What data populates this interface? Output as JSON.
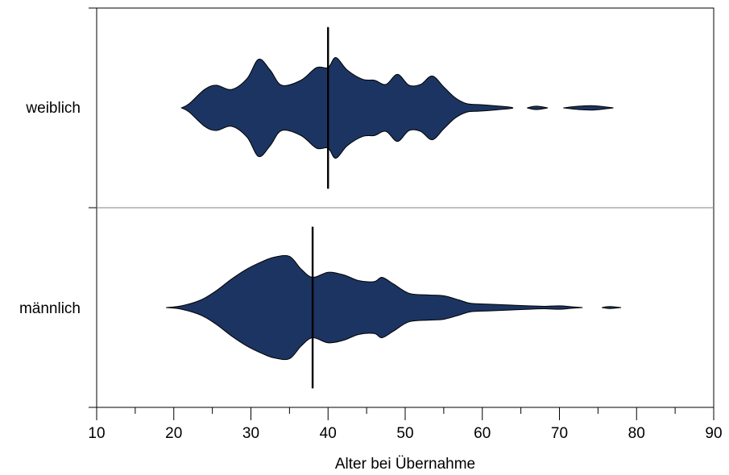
{
  "chart_data": {
    "type": "violin",
    "title": "",
    "xlabel": "Alter bei Übernahme",
    "ylabel": "",
    "xlim": [
      10,
      90
    ],
    "x_ticks": [
      "10",
      "20",
      "30",
      "40",
      "50",
      "60",
      "70",
      "80",
      "90"
    ],
    "x_minor_ticks": [
      15,
      25,
      35,
      45,
      55,
      65,
      75,
      85
    ],
    "grid": false,
    "legend": "none",
    "fill_color": "#1c3461",
    "outline_color": "#000000",
    "categories": [
      "weiblich",
      "männlich"
    ],
    "series": [
      {
        "name": "weiblich",
        "median": 40,
        "density": [
          [
            21.0,
            0
          ],
          [
            22.0,
            0.05
          ],
          [
            24.0,
            0.22
          ],
          [
            25.5,
            0.27
          ],
          [
            27.5,
            0.22
          ],
          [
            29.5,
            0.35
          ],
          [
            31.0,
            0.58
          ],
          [
            32.5,
            0.45
          ],
          [
            34.0,
            0.27
          ],
          [
            36.5,
            0.33
          ],
          [
            38.5,
            0.48
          ],
          [
            40.0,
            0.48
          ],
          [
            41.0,
            0.6
          ],
          [
            42.5,
            0.45
          ],
          [
            44.5,
            0.34
          ],
          [
            46.0,
            0.33
          ],
          [
            47.5,
            0.28
          ],
          [
            49.0,
            0.4
          ],
          [
            50.5,
            0.27
          ],
          [
            52.0,
            0.28
          ],
          [
            53.5,
            0.38
          ],
          [
            55.0,
            0.25
          ],
          [
            56.5,
            0.12
          ],
          [
            58.0,
            0.05
          ],
          [
            59.5,
            0.04
          ],
          [
            61.0,
            0.03
          ],
          [
            63.5,
            0.01
          ],
          [
            64.0,
            0
          ],
          [
            65.8,
            0
          ],
          [
            67.0,
            0.02
          ],
          [
            68.5,
            0
          ],
          [
            70.5,
            0
          ],
          [
            72.5,
            0.02
          ],
          [
            74.5,
            0.025
          ],
          [
            77.0,
            0
          ]
        ]
      },
      {
        "name": "männlich",
        "median": 38,
        "density": [
          [
            19.0,
            0
          ],
          [
            21.0,
            0.02
          ],
          [
            23.5,
            0.09
          ],
          [
            25.5,
            0.2
          ],
          [
            27.5,
            0.34
          ],
          [
            29.5,
            0.46
          ],
          [
            31.5,
            0.55
          ],
          [
            33.0,
            0.6
          ],
          [
            35.0,
            0.61
          ],
          [
            36.5,
            0.46
          ],
          [
            38.0,
            0.36
          ],
          [
            40.0,
            0.42
          ],
          [
            42.0,
            0.39
          ],
          [
            44.0,
            0.32
          ],
          [
            46.0,
            0.31
          ],
          [
            47.0,
            0.36
          ],
          [
            48.5,
            0.28
          ],
          [
            50.5,
            0.17
          ],
          [
            53.0,
            0.15
          ],
          [
            55.0,
            0.14
          ],
          [
            57.0,
            0.09
          ],
          [
            58.5,
            0.05
          ],
          [
            61.0,
            0.04
          ],
          [
            63.5,
            0.03
          ],
          [
            66.0,
            0.02
          ],
          [
            68.0,
            0.015
          ],
          [
            70.0,
            0.02
          ],
          [
            71.5,
            0.01
          ],
          [
            73.0,
            0
          ],
          [
            75.5,
            0
          ],
          [
            76.5,
            0.012
          ],
          [
            78.0,
            0
          ]
        ]
      }
    ]
  }
}
